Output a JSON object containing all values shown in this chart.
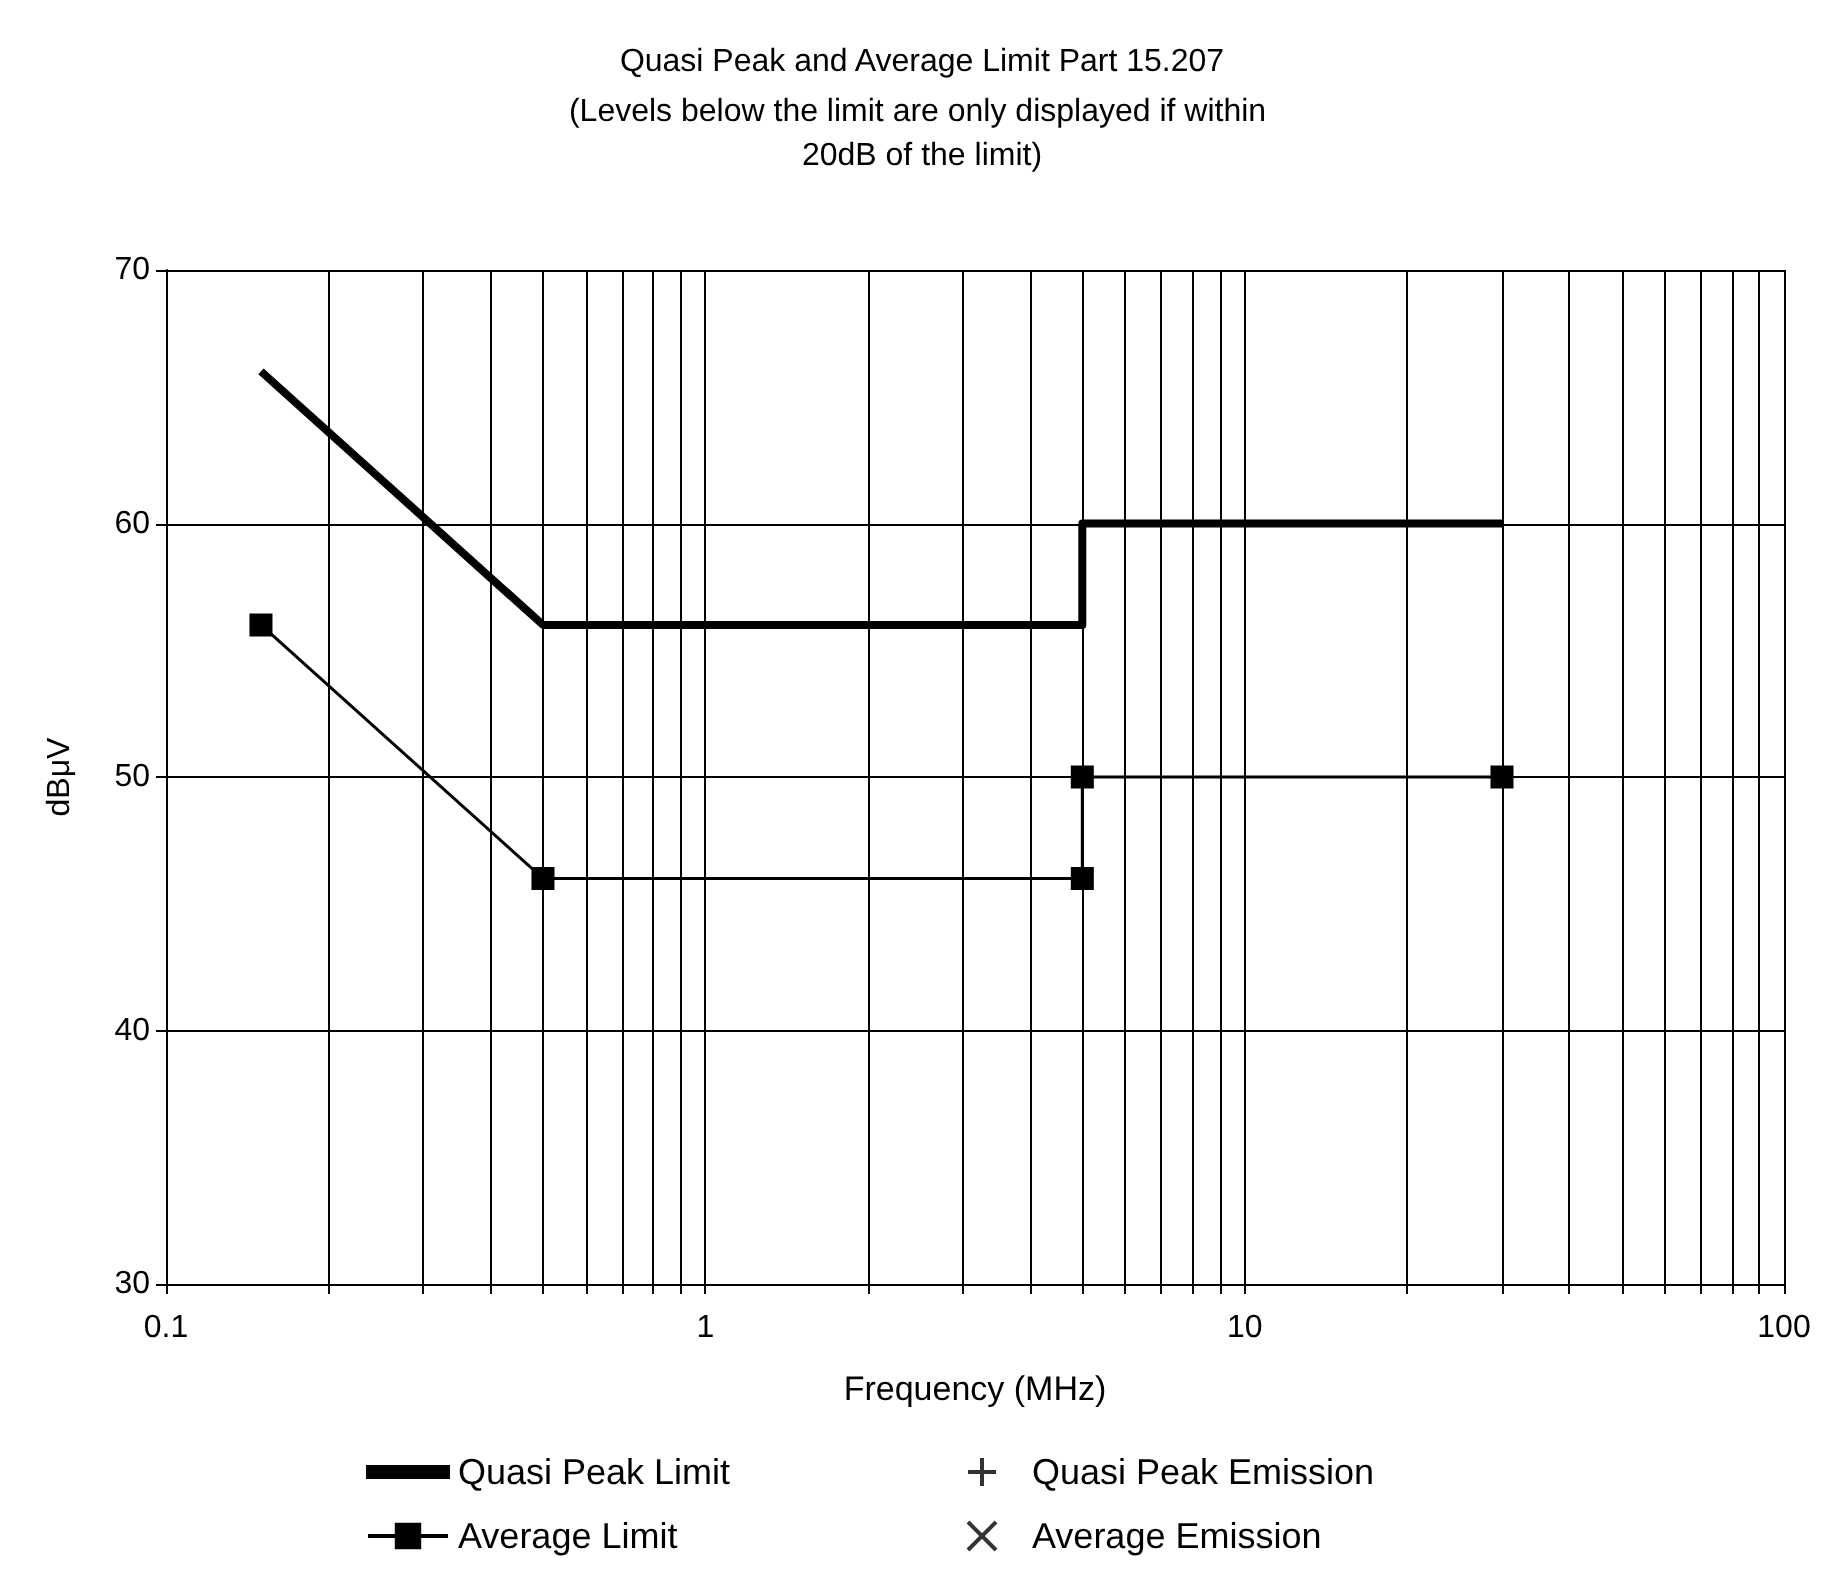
{
  "chart_data": {
    "type": "line",
    "title": "Quasi Peak and Average Limit Part 15.207",
    "subtitle": "(Levels below the limit are only displayed if within 20dB of the limit)",
    "xlabel": "Frequency (MHz)",
    "ylabel": "dBμV",
    "log": "x",
    "grid": true,
    "legend": "bottom",
    "xlim": [
      0.1,
      100
    ],
    "xticks": [
      0.1,
      1,
      10,
      100
    ],
    "ylim": [
      30,
      70
    ],
    "yticks": [
      30,
      40,
      50,
      60,
      70
    ],
    "series": [
      {
        "name": "Quasi Peak Limit",
        "color": "#000000",
        "marker": "none",
        "x": [
          0.15,
          0.5,
          5,
          5,
          30
        ],
        "values": [
          66,
          56,
          56,
          60,
          60
        ]
      },
      {
        "name": "Average Limit",
        "color": "#000000",
        "marker": "square",
        "x": [
          0.15,
          0.5,
          5,
          5,
          30
        ],
        "values": [
          56,
          46,
          46,
          50,
          50
        ]
      },
      {
        "name": "Quasi Peak Emission",
        "type": "scatter",
        "color": "#000000",
        "marker": "plus"
      },
      {
        "name": "Average Emission",
        "type": "scatter",
        "color": "#000000",
        "marker": "cross"
      }
    ]
  }
}
